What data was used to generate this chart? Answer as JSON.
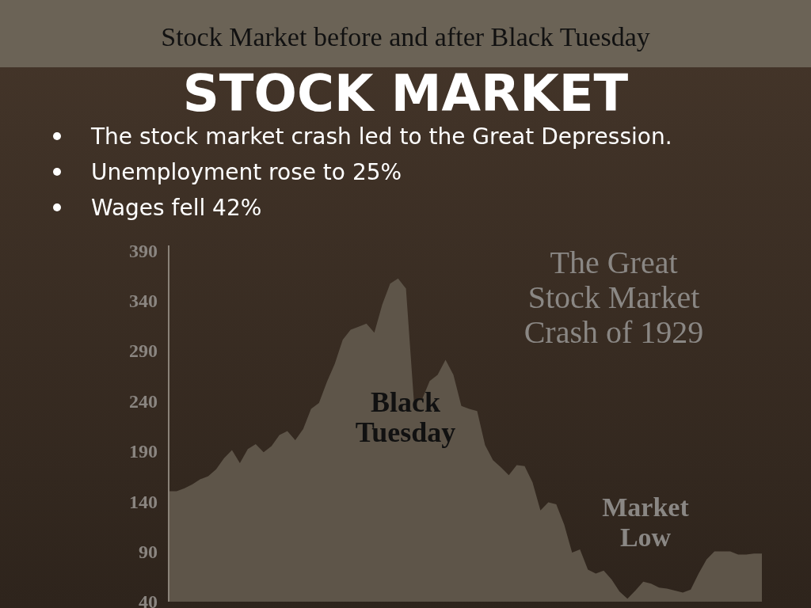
{
  "chart_data": {
    "type": "area",
    "title": "STOCK MARKET",
    "subtitle": "Stock Market before and after Black Tuesday",
    "annotations": [
      "The stock market crash led to the Great Depression.",
      "Unemployment rose to 25%",
      "Wages fell 42%",
      "The Great Stock Market Crash of 1929",
      "Black Tuesday",
      "Market Low"
    ],
    "categories": [
      null,
      null,
      null,
      null,
      null,
      null,
      null,
      null,
      null,
      null,
      null,
      null,
      null,
      null,
      null,
      null,
      null,
      null,
      null,
      null,
      null,
      null,
      null,
      null,
      null,
      null,
      null,
      null,
      null,
      null,
      null,
      null,
      null,
      null,
      null,
      null,
      null,
      null,
      null,
      null,
      null,
      null,
      null,
      null,
      null,
      null,
      null,
      null,
      null,
      null,
      null,
      null,
      null,
      null,
      null,
      null,
      null,
      null,
      null,
      null,
      null,
      null,
      null,
      null,
      null,
      null,
      null,
      null,
      null,
      null,
      null,
      null,
      null,
      null,
      null,
      null
    ],
    "values": [
      150,
      150,
      153,
      157,
      162,
      165,
      172,
      183,
      191,
      178,
      192,
      197,
      189,
      195,
      206,
      210,
      201,
      212,
      232,
      238,
      259,
      277,
      301,
      311,
      314,
      317,
      308,
      336,
      357,
      362,
      352,
      240,
      241,
      260,
      266,
      281,
      266,
      235,
      232,
      230,
      196,
      181,
      174,
      166,
      176,
      175,
      159,
      131,
      139,
      137,
      117,
      89,
      92,
      72,
      68,
      71,
      62,
      50,
      43,
      51,
      60,
      58,
      54,
      53,
      51,
      49,
      52,
      68,
      82,
      90,
      90,
      90,
      87,
      87,
      88,
      88
    ],
    "color": "#5e5549",
    "ylim": [
      40,
      395
    ],
    "yticks": [
      40,
      90,
      140,
      190,
      240,
      290,
      340,
      390
    ],
    "tick_labels": "y"
  }
}
